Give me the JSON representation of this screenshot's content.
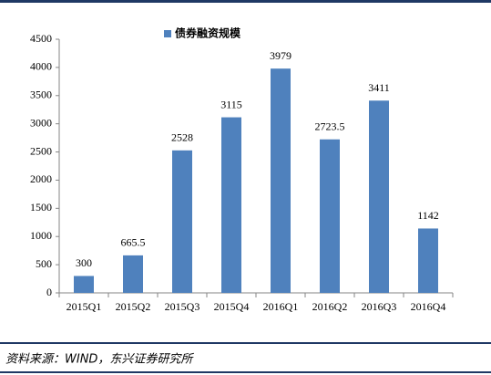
{
  "chart_data": {
    "type": "bar",
    "categories": [
      "2015Q1",
      "2015Q2",
      "2015Q3",
      "2015Q4",
      "2016Q1",
      "2016Q2",
      "2016Q3",
      "2016Q4"
    ],
    "series": [
      {
        "name": "债券融资规模",
        "color": "#4f81bd",
        "values": [
          300,
          665.5,
          2528,
          3115,
          3979,
          2723.5,
          3411,
          1142
        ]
      }
    ],
    "ylim": [
      0,
      4500
    ],
    "yticks": [
      0,
      500,
      1000,
      1500,
      2000,
      2500,
      3000,
      3500,
      4000,
      4500
    ],
    "grid": false,
    "legend": "top",
    "source": "资料来源：WIND，东兴证券研究所"
  }
}
